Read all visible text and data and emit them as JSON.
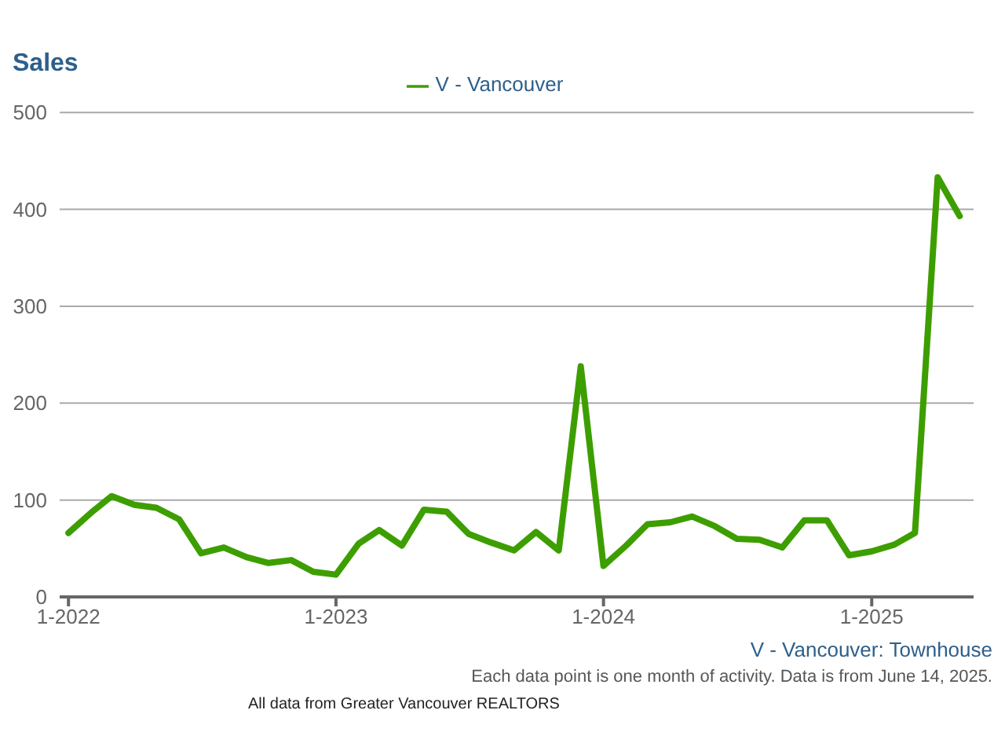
{
  "chart_data": {
    "type": "line",
    "title": "Sales",
    "x": [
      "2022-01",
      "2022-02",
      "2022-03",
      "2022-04",
      "2022-05",
      "2022-06",
      "2022-07",
      "2022-08",
      "2022-09",
      "2022-10",
      "2022-11",
      "2022-12",
      "2023-01",
      "2023-02",
      "2023-03",
      "2023-04",
      "2023-05",
      "2023-06",
      "2023-07",
      "2023-08",
      "2023-09",
      "2023-10",
      "2023-11",
      "2023-12",
      "2024-01",
      "2024-02",
      "2024-03",
      "2024-04",
      "2024-05",
      "2024-06",
      "2024-07",
      "2024-08",
      "2024-09",
      "2024-10",
      "2024-11",
      "2024-12",
      "2025-01",
      "2025-02",
      "2025-03",
      "2025-04",
      "2025-05"
    ],
    "series": [
      {
        "name": "V - Vancouver",
        "color": "#3d9e00",
        "values": [
          66,
          87,
          104,
          95,
          92,
          80,
          45,
          51,
          41,
          35,
          38,
          26,
          23,
          55,
          69,
          53,
          90,
          88,
          65,
          56,
          48,
          67,
          48,
          238,
          32,
          53,
          75,
          77,
          83,
          73,
          60,
          59,
          51,
          79,
          79,
          43,
          47,
          54,
          66,
          433,
          393
        ]
      }
    ],
    "xlim": [
      "2021-12-20",
      "2025-05-20"
    ],
    "xticks": [
      {
        "value": "2022-01",
        "label": "1-2022"
      },
      {
        "value": "2023-01",
        "label": "1-2023"
      },
      {
        "value": "2024-01",
        "label": "1-2024"
      },
      {
        "value": "2025-01",
        "label": "1-2025"
      }
    ],
    "ylim": [
      0,
      500
    ],
    "yticks": [
      0,
      100,
      200,
      300,
      400,
      500
    ],
    "grid": "y",
    "legend": "top",
    "marker": "none",
    "line_style": "solid",
    "annotations": [
      "V - Vancouver: Townhouse",
      "Each data point is one month of activity. Data is from June 14, 2025.",
      "All data from Greater Vancouver REALTORS"
    ]
  }
}
